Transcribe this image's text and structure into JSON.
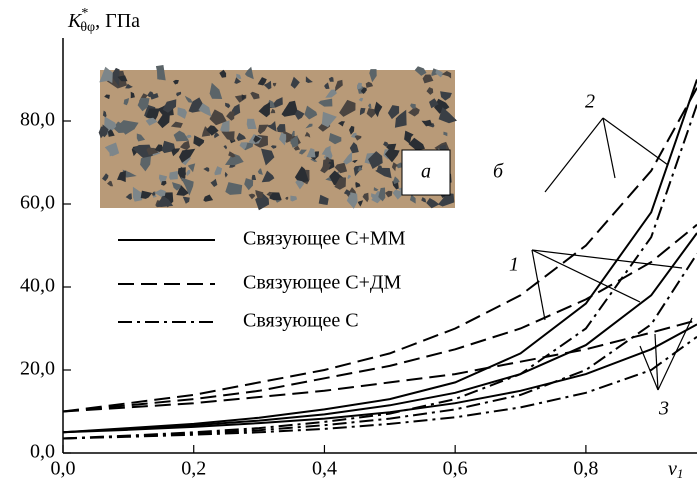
{
  "chart_data": {
    "type": "line",
    "y_label": {
      "symbol": "K",
      "superscript": "*",
      "subscript": "θφ",
      "unit": ", ГПа"
    },
    "x_label": {
      "symbol": "v",
      "subscript": "1"
    },
    "x": [
      0,
      0.1,
      0.2,
      0.3,
      0.4,
      0.5,
      0.6,
      0.7,
      0.8,
      0.9,
      0.97
    ],
    "xlim": [
      0,
      0.97
    ],
    "ylim": [
      0,
      100
    ],
    "xticks": [
      {
        "value": 0,
        "label": "0,0"
      },
      {
        "value": 0.2,
        "label": "0,2"
      },
      {
        "value": 0.4,
        "label": "0,4"
      },
      {
        "value": 0.6,
        "label": "0,6"
      },
      {
        "value": 0.8,
        "label": "0,8"
      }
    ],
    "yticks": [
      {
        "value": 0,
        "label": "0,0"
      },
      {
        "value": 20,
        "label": "20,0"
      },
      {
        "value": 40,
        "label": "40,0"
      },
      {
        "value": 60,
        "label": "60,0"
      },
      {
        "value": 80,
        "label": "80,0"
      }
    ],
    "color": "#000000",
    "legend": [
      {
        "name": "Связующее С+ММ",
        "style": "solid"
      },
      {
        "name": "Связующее С+ДМ",
        "style": "dashed"
      },
      {
        "name": "Связующее С",
        "style": "dashdot"
      }
    ],
    "series": [
      {
        "style": "dashed",
        "values": [
          10,
          12,
          14,
          17,
          20,
          24,
          30,
          38,
          50,
          68,
          88
        ]
      },
      {
        "style": "dashed",
        "values": [
          10,
          11.5,
          13,
          15,
          18,
          21,
          25,
          30,
          37,
          46,
          55
        ]
      },
      {
        "style": "dashed",
        "values": [
          10,
          11,
          12,
          13.5,
          15,
          17,
          19,
          22,
          25,
          29,
          32
        ]
      },
      {
        "style": "solid",
        "values": [
          5,
          6,
          7,
          8.5,
          10.5,
          13,
          17,
          24,
          36,
          58,
          90
        ]
      },
      {
        "style": "solid",
        "values": [
          5,
          5.8,
          6.7,
          7.8,
          9.3,
          11.5,
          14.5,
          19,
          26,
          38,
          53
        ]
      },
      {
        "style": "solid",
        "values": [
          5,
          5.6,
          6.3,
          7.2,
          8.3,
          9.8,
          12,
          15,
          19,
          25,
          31
        ]
      },
      {
        "style": "dashdot",
        "values": [
          3.5,
          4.2,
          5,
          6,
          7.5,
          9.5,
          13,
          19,
          30,
          52,
          84
        ]
      },
      {
        "style": "dashdot",
        "values": [
          3.5,
          4,
          4.7,
          5.5,
          6.7,
          8.3,
          10.5,
          14,
          20,
          31,
          48
        ]
      },
      {
        "style": "dashdot",
        "values": [
          3.5,
          3.9,
          4.4,
          5,
          5.8,
          7,
          8.6,
          11,
          14.5,
          20,
          28
        ]
      }
    ],
    "annotations": {
      "group_2": "2",
      "group_1": "1",
      "group_3": "3",
      "photo": "а",
      "panel": "б"
    }
  }
}
